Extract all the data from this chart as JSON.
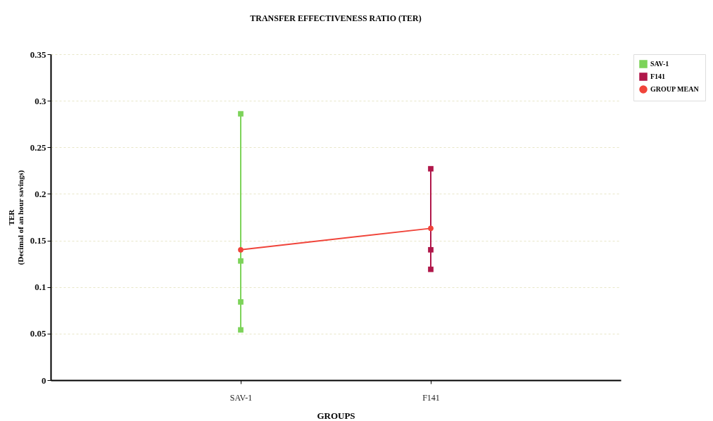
{
  "chart_data": {
    "type": "line",
    "title": "TRANSFER EFFECTIVENESS RATIO (TER)",
    "xlabel": "GROUPS",
    "ylabel": "TER\n(Decimal of an hour savings)",
    "categories": [
      "SAV-1",
      "F141"
    ],
    "series": [
      {
        "name": "SAV-1",
        "color": "#7dd35a",
        "marker": "square",
        "x": [
          "SAV-1",
          "SAV-1",
          "SAV-1",
          "SAV-1"
        ],
        "values": [
          0.286,
          0.128,
          0.084,
          0.054
        ]
      },
      {
        "name": "F141",
        "color": "#b0174a",
        "marker": "square",
        "x": [
          "F141",
          "F141",
          "F141"
        ],
        "values": [
          0.227,
          0.14,
          0.119
        ]
      },
      {
        "name": "GROUP MEAN",
        "color": "#f0443a",
        "marker": "circle",
        "x": [
          "SAV-1",
          "F141"
        ],
        "values": [
          0.14,
          0.163
        ]
      }
    ],
    "ylim": [
      0,
      0.35
    ],
    "yticks": [
      0,
      0.05,
      0.1,
      0.15,
      0.2,
      0.25,
      0.3,
      0.35
    ],
    "grid": "y",
    "legend": "right"
  }
}
